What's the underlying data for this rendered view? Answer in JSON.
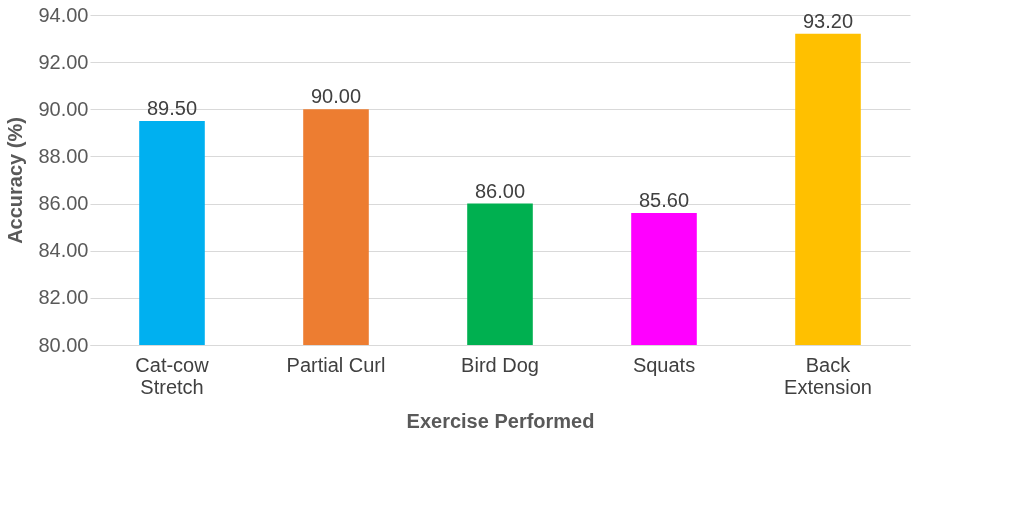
{
  "chart_data": {
    "type": "bar",
    "categories": [
      "Cat-cow\nStretch",
      "Partial Curl",
      "Bird Dog",
      "Squats",
      "Back\nExtension"
    ],
    "values": [
      89.5,
      90.0,
      86.0,
      85.6,
      93.2
    ],
    "value_labels": [
      "89.50",
      "90.00",
      "86.00",
      "85.60",
      "93.20"
    ],
    "colors": [
      "#00b0f0",
      "#ed7d31",
      "#00b050",
      "#ff00ff",
      "#ffc000"
    ],
    "xlabel": "Exercise Performed",
    "ylabel": "Accuracy (%)",
    "ylim": [
      80,
      94
    ],
    "yticks": [
      {
        "value": 80,
        "label": "80.00"
      },
      {
        "value": 82,
        "label": "82.00"
      },
      {
        "value": 84,
        "label": "84.00"
      },
      {
        "value": 86,
        "label": "86.00"
      },
      {
        "value": 88,
        "label": "88.00"
      },
      {
        "value": 90,
        "label": "90.00"
      },
      {
        "value": 92,
        "label": "92.00"
      },
      {
        "value": 94,
        "label": "94.00"
      }
    ],
    "grid": "y"
  }
}
